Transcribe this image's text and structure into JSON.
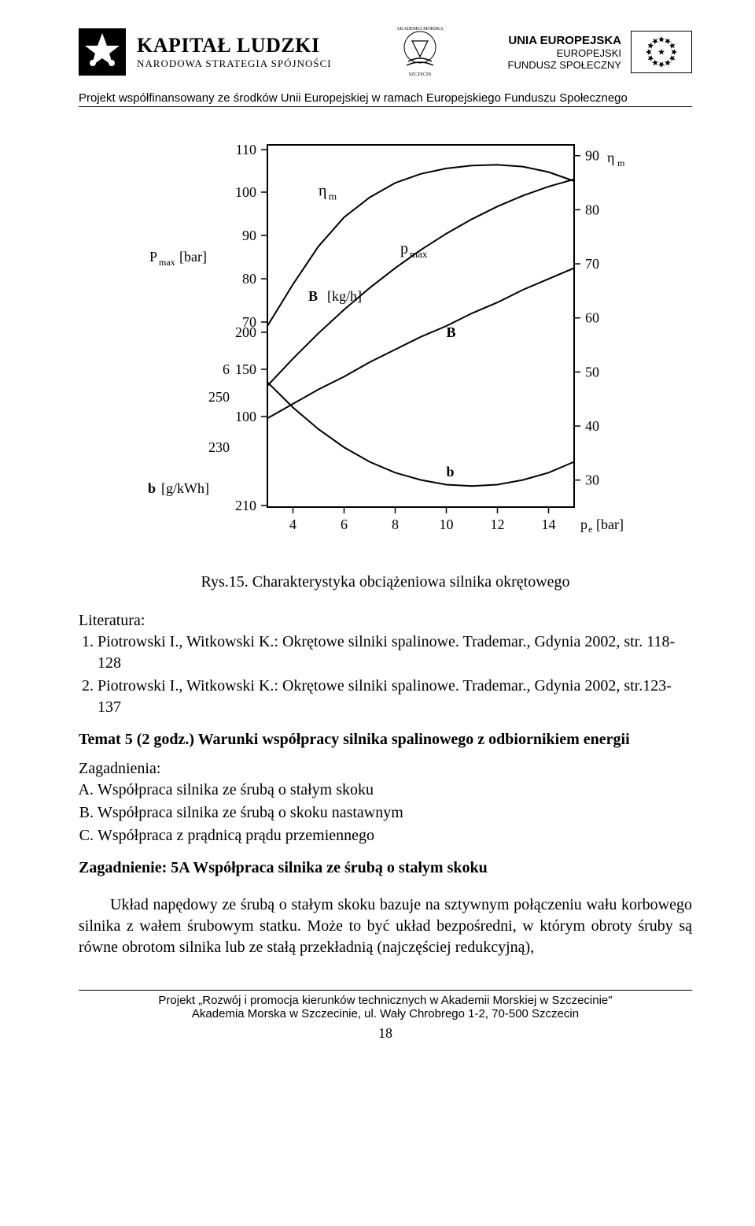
{
  "header": {
    "kl_main": "KAPITAŁ LUDZKI",
    "kl_sub": "NARODOWA STRATEGIA SPÓJNOŚCI",
    "ue_line1": "UNIA EUROPEJSKA",
    "ue_line2": "EUROPEJSKI",
    "ue_line3": "FUNDUSZ SPOŁECZNY",
    "project_line": "Projekt współfinansowany ze środków Unii Europejskiej w ramach Europejskiego Funduszu Społecznego"
  },
  "chart": {
    "type": "line",
    "background_color": "#ffffff",
    "axis_color": "#000000",
    "line_color": "#000000",
    "line_width": 2,
    "title_fontsize": 18,
    "tick_fontsize": 18,
    "font_family": "Times New Roman",
    "x": {
      "label": "p_e [bar]",
      "ticks": [
        4,
        6,
        8,
        10,
        12,
        14
      ],
      "xlim": [
        3,
        15
      ]
    },
    "left_axes": [
      {
        "label": "P_max [bar]",
        "ticks": [
          70,
          80,
          90,
          100,
          110
        ],
        "ylim": [
          65,
          112
        ]
      },
      {
        "label": "B [kg/h]",
        "ticks": [
          100,
          150,
          200
        ],
        "ylim": [
          80,
          210
        ]
      },
      {
        "label": "",
        "ticks": [
          6
        ],
        "ylim": [
          5.5,
          6.5
        ]
      },
      {
        "label": "",
        "ticks": [
          230,
          250
        ],
        "ylim": [
          220,
          260
        ]
      },
      {
        "label": "b [g/kWh]",
        "ticks": [
          210
        ],
        "ylim": [
          205,
          215
        ]
      }
    ],
    "right_axis": {
      "label": "η_m",
      "ticks": [
        30,
        40,
        50,
        60,
        70,
        80,
        90
      ],
      "ylim": [
        25,
        92
      ]
    },
    "curves": {
      "eta_m": {
        "label": "η_m",
        "label_xy": [
          5.0,
          0.86
        ],
        "points": [
          [
            3,
            0.5
          ],
          [
            4,
            0.615
          ],
          [
            5,
            0.72
          ],
          [
            6,
            0.8
          ],
          [
            7,
            0.855
          ],
          [
            8,
            0.895
          ],
          [
            9,
            0.92
          ],
          [
            10,
            0.935
          ],
          [
            11,
            0.943
          ],
          [
            12,
            0.945
          ],
          [
            13,
            0.94
          ],
          [
            14,
            0.925
          ],
          [
            15,
            0.9
          ]
        ]
      },
      "p_max": {
        "label": "p_max",
        "label_xy": [
          8.2,
          0.7
        ],
        "points": [
          [
            3,
            0.335
          ],
          [
            4,
            0.41
          ],
          [
            5,
            0.48
          ],
          [
            6,
            0.545
          ],
          [
            7,
            0.605
          ],
          [
            8,
            0.66
          ],
          [
            9,
            0.71
          ],
          [
            10,
            0.755
          ],
          [
            11,
            0.795
          ],
          [
            12,
            0.83
          ],
          [
            13,
            0.86
          ],
          [
            14,
            0.885
          ],
          [
            15,
            0.905
          ]
        ]
      },
      "B": {
        "label": "B",
        "label_xy": [
          10.0,
          0.47
        ],
        "points": [
          [
            3,
            0.245
          ],
          [
            4,
            0.285
          ],
          [
            5,
            0.325
          ],
          [
            6,
            0.36
          ],
          [
            7,
            0.4
          ],
          [
            8,
            0.435
          ],
          [
            9,
            0.47
          ],
          [
            10,
            0.5
          ],
          [
            11,
            0.535
          ],
          [
            12,
            0.565
          ],
          [
            13,
            0.6
          ],
          [
            14,
            0.63
          ],
          [
            15,
            0.66
          ]
        ]
      },
      "b": {
        "label": "b",
        "label_xy": [
          10.0,
          0.085
        ],
        "points": [
          [
            3,
            0.345
          ],
          [
            4,
            0.275
          ],
          [
            5,
            0.215
          ],
          [
            6,
            0.165
          ],
          [
            7,
            0.125
          ],
          [
            8,
            0.095
          ],
          [
            9,
            0.075
          ],
          [
            10,
            0.062
          ],
          [
            11,
            0.058
          ],
          [
            12,
            0.062
          ],
          [
            13,
            0.075
          ],
          [
            14,
            0.095
          ],
          [
            15,
            0.125
          ]
        ]
      }
    },
    "inner_axis_labels": {
      "B_label": "B  [kg/h]",
      "B_label_xy": [
        4.6,
        0.57
      ]
    }
  },
  "caption": "Rys.15. Charakterystyka obciążeniowa silnika okrętowego",
  "literature": {
    "heading": "Literatura:",
    "items": [
      "Piotrowski I., Witkowski K.: Okrętowe silniki spalinowe. Trademar., Gdynia 2002, str. 118-128",
      "Piotrowski I., Witkowski K.: Okrętowe silniki spalinowe. Trademar., Gdynia 2002, str.123-137"
    ]
  },
  "topic": {
    "title": "Temat 5 (2 godz.) Warunki współpracy silnika spalinowego z odbiornikiem energii",
    "zag_heading": "Zagadnienia:",
    "zag_items": [
      "Współpraca silnika ze śrubą o stałym skoku",
      "Współpraca silnika ze śrubą o skoku nastawnym",
      "Współpraca z prądnicą prądu przemiennego"
    ],
    "zag5a_title": "Zagadnienie: 5A Współpraca silnika ze śrubą o stałym skoku",
    "paragraph": "Układ napędowy ze śrubą o stałym skoku bazuje na sztywnym połączeniu wału korbowego silnika z wałem śrubowym statku. Może to być układ bezpośredni, w którym obroty śruby są równe obrotom silnika lub ze stałą przekładnią (najczęściej redukcyjną),"
  },
  "footer": {
    "line1": "Projekt „Rozwój i promocja kierunków technicznych w Akademii Morskiej w Szczecinie\"",
    "line2": "Akademia Morska w Szczecinie, ul. Wały Chrobrego 1-2, 70-500 Szczecin",
    "pagenum": "18"
  }
}
